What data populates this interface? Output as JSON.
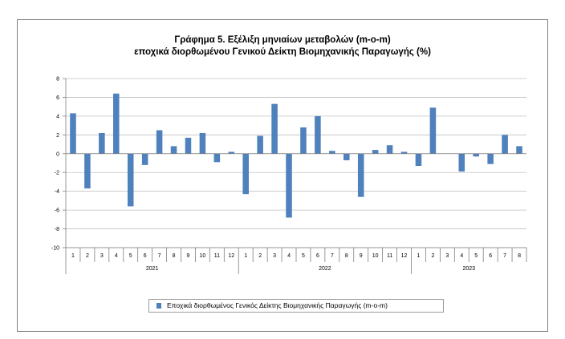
{
  "chart_data": {
    "type": "bar",
    "title_line1": "Γράφημα 5. Εξέλιξη μηνιαίων μεταβολών (m-o-m)",
    "title_line2": "εποχικά διορθωμένου Γενικού Δείκτη Βιομηχανικής Παραγωγής (%)",
    "xlabel": "",
    "ylabel": "",
    "ylim": [
      -10,
      8
    ],
    "yticks": [
      8,
      6,
      4,
      2,
      0,
      -2,
      -4,
      -6,
      -8,
      -10
    ],
    "grid": true,
    "color": "#4f81bd",
    "legend_position": "bottom",
    "series": [
      {
        "name": "Εποχικά διορθωμένος Γενικός Δείκτης Βιομηχανικής Παραγωγής (m-o-m)",
        "values": [
          4.3,
          -3.7,
          2.2,
          6.4,
          -5.6,
          -1.2,
          2.5,
          0.8,
          1.7,
          2.2,
          -0.9,
          0.2,
          -4.3,
          1.9,
          5.3,
          -6.8,
          2.8,
          4.0,
          0.3,
          -0.7,
          -4.6,
          0.4,
          0.9,
          0.2,
          -1.3,
          4.9,
          0.0,
          -1.9,
          -0.3,
          -1.1,
          2.0,
          0.8
        ]
      }
    ],
    "categories": [
      "1",
      "2",
      "3",
      "4",
      "5",
      "6",
      "7",
      "8",
      "9",
      "10",
      "11",
      "12",
      "1",
      "2",
      "3",
      "4",
      "5",
      "6",
      "7",
      "8",
      "9",
      "10",
      "11",
      "12",
      "1",
      "2",
      "3",
      "4",
      "5",
      "6",
      "7",
      "8"
    ],
    "year_groups": [
      {
        "label": "2021",
        "count": 12
      },
      {
        "label": "2022",
        "count": 12
      },
      {
        "label": "2023",
        "count": 8
      }
    ]
  }
}
